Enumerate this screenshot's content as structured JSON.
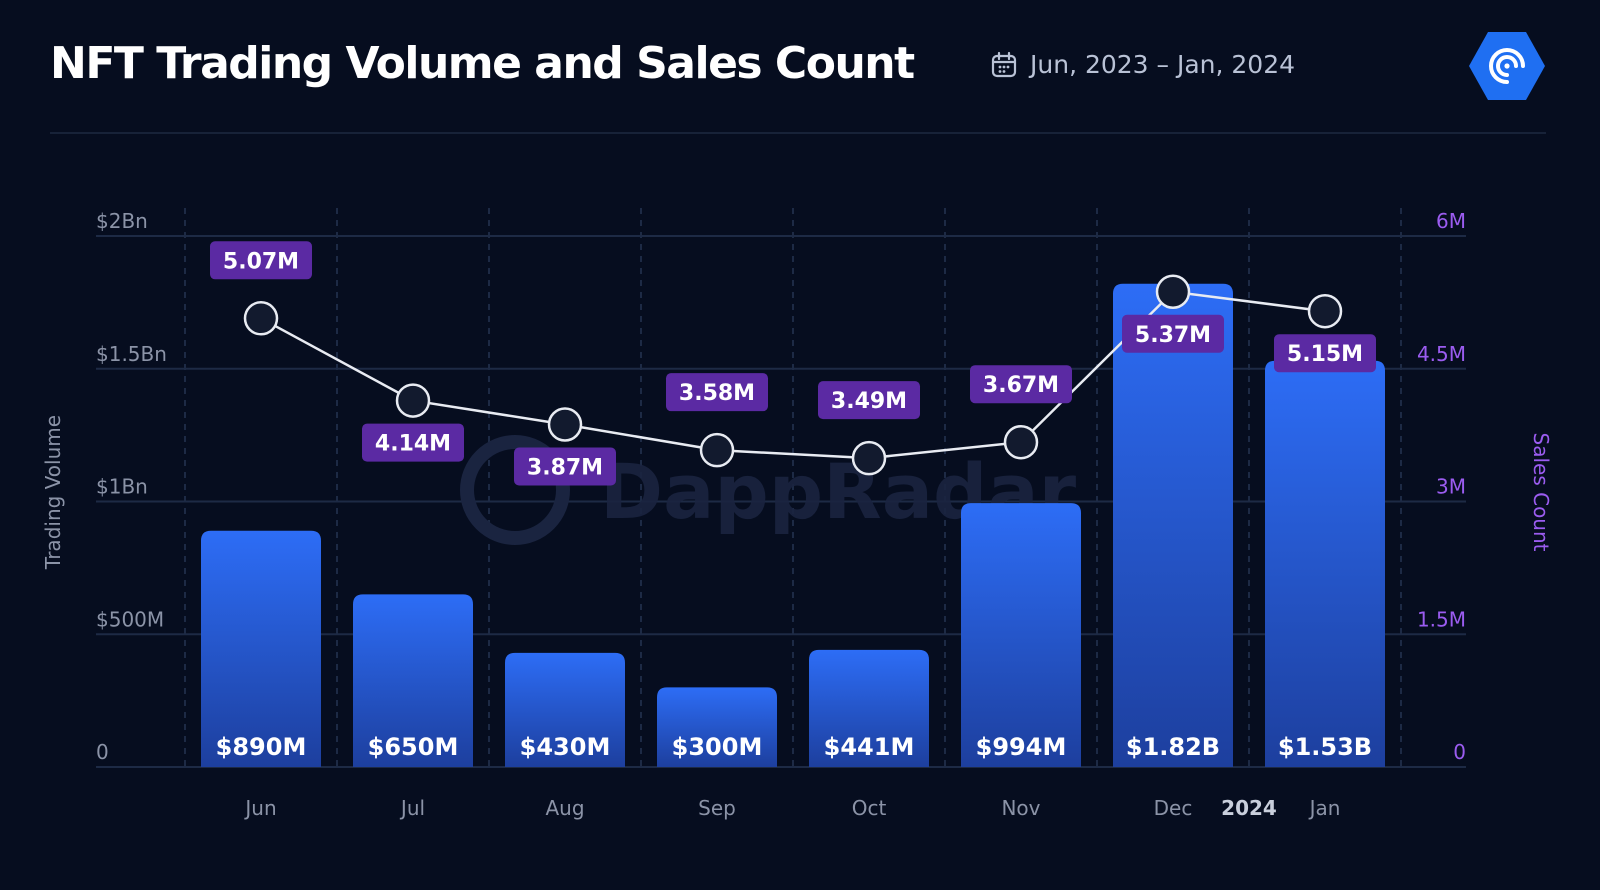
{
  "header": {
    "title": "NFT Trading Volume and Sales Count",
    "date_range": "Jun, 2023 – Jan, 2024"
  },
  "colors": {
    "background": "#060d1f",
    "bar_top": "#2d6df6",
    "bar_bottom": "#1d3f9e",
    "line": "#e8ebf2",
    "label_bg": "#5b2aa3",
    "right_axis": "#9b5cf0",
    "left_axis": "#8b93a7",
    "grid": "#1d2a45"
  },
  "icons": {
    "calendar": "calendar-icon",
    "brand": "dappradar-logo-icon"
  },
  "watermark": "DappRadar",
  "chart_data": {
    "type": "bar",
    "combo": "bar + line",
    "categories": [
      "Jun",
      "Jul",
      "Aug",
      "Sep",
      "Oct",
      "Nov",
      "Dec",
      "Jan"
    ],
    "year_marker": {
      "label": "2024",
      "after": "Dec"
    },
    "series": [
      {
        "name": "Trading Volume",
        "type": "bar",
        "axis": "left",
        "values": [
          890000000,
          650000000,
          430000000,
          300000000,
          441000000,
          994000000,
          1820000000,
          1530000000
        ],
        "labels": [
          "$890M",
          "$650M",
          "$430M",
          "$300M",
          "$441M",
          "$994M",
          "$1.82B",
          "$1.53B"
        ]
      },
      {
        "name": "Sales Count",
        "type": "line",
        "axis": "right",
        "values": [
          5070000,
          4140000,
          3870000,
          3580000,
          3490000,
          3670000,
          5370000,
          5150000
        ],
        "labels": [
          "5.07M",
          "4.14M",
          "3.87M",
          "3.58M",
          "3.49M",
          "3.67M",
          "5.37M",
          "5.15M"
        ]
      }
    ],
    "y_left": {
      "label": "Trading Volume",
      "ylim": [
        0,
        2000000000
      ],
      "ticks": [
        0,
        500000000,
        1000000000,
        1500000000,
        2000000000
      ],
      "tick_labels": [
        "0",
        "$500M",
        "$1Bn",
        "$1.5Bn",
        "$2Bn"
      ]
    },
    "y_right": {
      "label": "Sales Count",
      "ylim": [
        0,
        6000000
      ],
      "ticks": [
        0,
        1500000,
        3000000,
        4500000,
        6000000
      ],
      "tick_labels": [
        "0",
        "1.5M",
        "3M",
        "4.5M",
        "6M"
      ]
    },
    "grid": true
  }
}
